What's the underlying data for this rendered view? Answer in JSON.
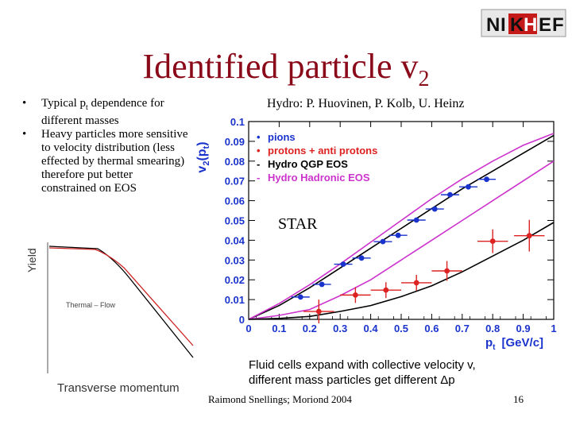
{
  "slide": {
    "title_main": "Identified particle v",
    "title_sub": "2",
    "bullets": [
      {
        "pre": "Typical p",
        "sub": "t",
        "post": " dependence for different masses"
      },
      {
        "text": "Heavy particles more sensitive to velocity distribution (less effected by thermal smearing) therefore put better constrained on EOS"
      }
    ],
    "hydro_credit": "Hydro: P. Huovinen, P. Kolb, U. Heinz",
    "star_label": "STAR",
    "fluid_line1": "Fluid cells expand with collective velocity v,",
    "fluid_line2_pre": "different mass particles get different ",
    "fluid_line2_sym": "Δp",
    "footer": "Raimond Snellings; Moriond 2004",
    "page_number": "16",
    "logo_text": {
      "n": "N",
      "i": "I",
      "k": "K",
      "h": "H",
      "e": "E",
      "f": "F"
    }
  },
  "yield_plot": {
    "ylabel": "Yield",
    "xlabel": "Transverse momentum",
    "annotation": "Thermal – Flow",
    "series": [
      {
        "name": "Thermal",
        "color": "#000000"
      },
      {
        "name": "Flow",
        "color": "#cc2222"
      }
    ]
  },
  "chart_data": {
    "type": "scatter",
    "ylabel": "v2(pt)",
    "ylabel_main": "v",
    "ylabel_sub": "2",
    "ylabel_paren": "(p",
    "ylabel_paren_sub": "t",
    "ylabel_close": ")",
    "xlabel_main": "p",
    "xlabel_sub": "t",
    "xlabel_unit": "[GeV/c]",
    "xlim": [
      0,
      1
    ],
    "ylim": [
      0,
      0.1
    ],
    "xticks": [
      {
        "v": 0,
        "label": "0"
      },
      {
        "v": 0.1,
        "label": "0.1"
      },
      {
        "v": 0.2,
        "label": "0.2"
      },
      {
        "v": 0.3,
        "label": "0.3"
      },
      {
        "v": 0.4,
        "label": "0.4"
      },
      {
        "v": 0.5,
        "label": "0.5"
      },
      {
        "v": 0.6,
        "label": "0.6"
      },
      {
        "v": 0.7,
        "label": "0.7"
      },
      {
        "v": 0.8,
        "label": "0.8"
      },
      {
        "v": 0.9,
        "label": "0.9"
      },
      {
        "v": 1.0,
        "label": "1"
      }
    ],
    "yticks": [
      {
        "v": 0,
        "label": "0"
      },
      {
        "v": 0.01,
        "label": "0.01"
      },
      {
        "v": 0.02,
        "label": "0.02"
      },
      {
        "v": 0.03,
        "label": "0.03"
      },
      {
        "v": 0.04,
        "label": "0.04"
      },
      {
        "v": 0.05,
        "label": "0.05"
      },
      {
        "v": 0.06,
        "label": "0.06"
      },
      {
        "v": 0.07,
        "label": "0.07"
      },
      {
        "v": 0.08,
        "label": "0.08"
      },
      {
        "v": 0.09,
        "label": "0.09"
      },
      {
        "v": 0.1,
        "label": "0.1"
      }
    ],
    "legend": [
      {
        "marker": "•",
        "label": "pions",
        "color": "#1a33cc"
      },
      {
        "marker": "•",
        "label": "protons  +  anti  protons",
        "color": "#dd2222"
      },
      {
        "marker": "-",
        "label": "Hydro  QGP  EOS",
        "color": "#000000"
      },
      {
        "marker": "-",
        "label": "Hydro  Hadronic  EOS",
        "color": "#cc33cc"
      }
    ],
    "series": [
      {
        "name": "pions",
        "color": "#1a33cc",
        "points": [
          {
            "x": 0.17,
            "y": 0.0113,
            "xerr": 0.03
          },
          {
            "x": 0.24,
            "y": 0.0177,
            "xerr": 0.03
          },
          {
            "x": 0.31,
            "y": 0.0279,
            "xerr": 0.03
          },
          {
            "x": 0.37,
            "y": 0.031,
            "xerr": 0.03
          },
          {
            "x": 0.44,
            "y": 0.0393,
            "xerr": 0.03
          },
          {
            "x": 0.49,
            "y": 0.0425,
            "xerr": 0.03
          },
          {
            "x": 0.55,
            "y": 0.0502,
            "xerr": 0.03
          },
          {
            "x": 0.61,
            "y": 0.0558,
            "xerr": 0.03
          },
          {
            "x": 0.66,
            "y": 0.063,
            "xerr": 0.03
          },
          {
            "x": 0.72,
            "y": 0.067,
            "xerr": 0.03
          },
          {
            "x": 0.78,
            "y": 0.0708,
            "xerr": 0.03
          }
        ]
      },
      {
        "name": "protons + anti protons",
        "color": "#dd2222",
        "points": [
          {
            "x": 0.23,
            "y": 0.004,
            "xerr": 0.05,
            "yerr": 0.006
          },
          {
            "x": 0.35,
            "y": 0.0123,
            "xerr": 0.05,
            "yerr": 0.004
          },
          {
            "x": 0.45,
            "y": 0.0148,
            "xerr": 0.05,
            "yerr": 0.004
          },
          {
            "x": 0.55,
            "y": 0.0185,
            "xerr": 0.05,
            "yerr": 0.004
          },
          {
            "x": 0.65,
            "y": 0.0245,
            "xerr": 0.05,
            "yerr": 0.005
          },
          {
            "x": 0.8,
            "y": 0.0395,
            "xerr": 0.05,
            "yerr": 0.006
          },
          {
            "x": 0.92,
            "y": 0.0423,
            "xerr": 0.05,
            "yerr": 0.008
          }
        ]
      }
    ],
    "curves": [
      {
        "name": "Hydro QGP EOS (pions)",
        "color": "#000000",
        "points": [
          [
            0,
            0
          ],
          [
            0.1,
            0.007
          ],
          [
            0.2,
            0.016
          ],
          [
            0.3,
            0.026
          ],
          [
            0.4,
            0.036
          ],
          [
            0.5,
            0.046
          ],
          [
            0.6,
            0.056
          ],
          [
            0.7,
            0.066
          ],
          [
            0.8,
            0.075
          ],
          [
            0.9,
            0.084
          ],
          [
            1.0,
            0.093
          ]
        ]
      },
      {
        "name": "Hydro Hadronic EOS (pions)",
        "color": "#cc33cc",
        "points": [
          [
            0,
            0
          ],
          [
            0.1,
            0.008
          ],
          [
            0.2,
            0.0175
          ],
          [
            0.3,
            0.028
          ],
          [
            0.4,
            0.039
          ],
          [
            0.5,
            0.05
          ],
          [
            0.6,
            0.061
          ],
          [
            0.7,
            0.071
          ],
          [
            0.8,
            0.08
          ],
          [
            0.9,
            0.088
          ],
          [
            1.0,
            0.094
          ]
        ]
      },
      {
        "name": "Hydro Hadronic EOS (protons)",
        "color": "#cc33cc",
        "points": [
          [
            0,
            0
          ],
          [
            0.1,
            0.002
          ],
          [
            0.2,
            0.005
          ],
          [
            0.3,
            0.012
          ],
          [
            0.4,
            0.02
          ],
          [
            0.5,
            0.03
          ],
          [
            0.6,
            0.04
          ],
          [
            0.7,
            0.05
          ],
          [
            0.8,
            0.06
          ],
          [
            0.9,
            0.07
          ],
          [
            1.0,
            0.08
          ]
        ]
      },
      {
        "name": "Hydro QGP EOS (protons)",
        "color": "#000000",
        "points": [
          [
            0,
            0
          ],
          [
            0.1,
            0.0005
          ],
          [
            0.2,
            0.0015
          ],
          [
            0.3,
            0.004
          ],
          [
            0.4,
            0.007
          ],
          [
            0.5,
            0.0115
          ],
          [
            0.6,
            0.017
          ],
          [
            0.7,
            0.024
          ],
          [
            0.8,
            0.032
          ],
          [
            0.9,
            0.04
          ],
          [
            1.0,
            0.049
          ]
        ]
      }
    ]
  }
}
